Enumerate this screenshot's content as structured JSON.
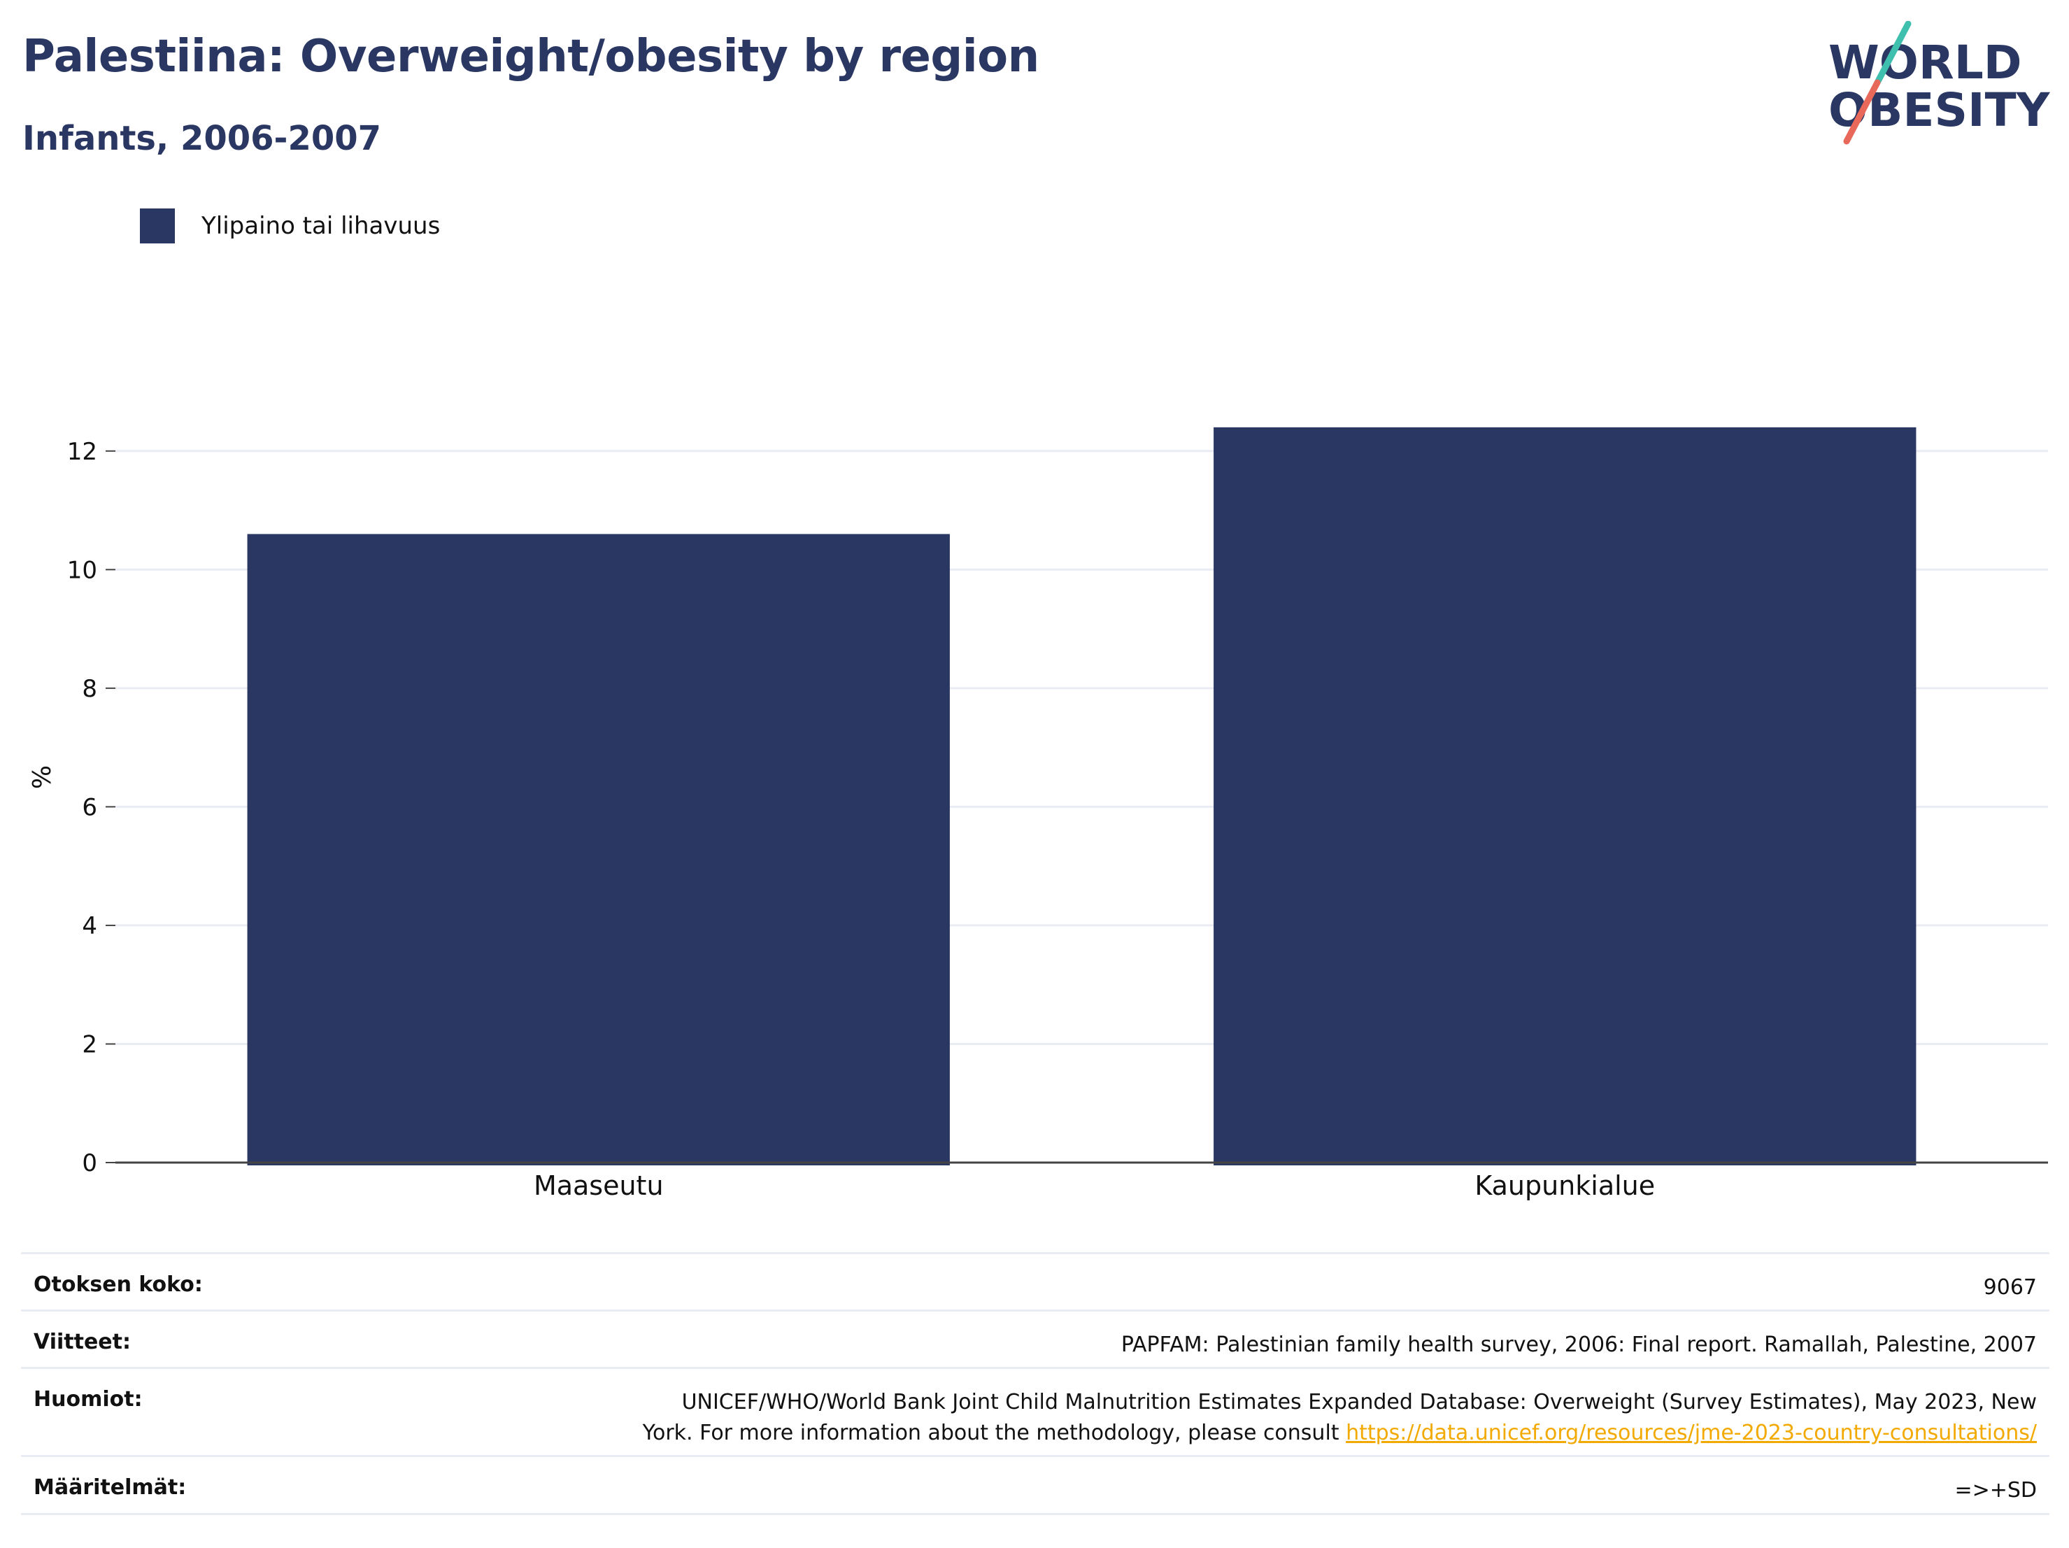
{
  "header": {
    "title": "Palestiina: Overweight/obesity by region",
    "subtitle": "Infants, 2006-2007"
  },
  "logo": {
    "line1": "WORLD",
    "line2": "OBESITY",
    "colors": {
      "text": "#2a3763",
      "slash_top": "#3fbfad",
      "slash_bottom": "#e8685a"
    }
  },
  "legend": {
    "label": "Ylipaino tai lihavuus",
    "color": "#2a3763"
  },
  "chart_data": {
    "type": "bar",
    "categories": [
      "Maaseutu",
      "Kaupunkialue"
    ],
    "series": [
      {
        "name": "Ylipaino tai lihavuus",
        "values": [
          10.6,
          12.4
        ],
        "color": "#2a3763"
      }
    ],
    "ylabel": "%",
    "xlabel": "",
    "ylim": [
      0,
      13
    ],
    "yticks": [
      0,
      2,
      4,
      6,
      8,
      10,
      12
    ],
    "grid": true,
    "legend_position": "top-left"
  },
  "meta": {
    "sample_size": {
      "label": "Otoksen koko:",
      "value": "9067"
    },
    "references": {
      "label": "Viitteet:",
      "value": "PAPFAM: Palestinian family health survey, 2006: Final report. Ramallah, Palestine, 2007"
    },
    "notes": {
      "label": "Huomiot:",
      "value_line1": "UNICEF/WHO/World Bank Joint Child Malnutrition Estimates Expanded Database: Overweight (Survey Estimates), May 2023, New",
      "value_line2": "York. For more information about the methodology, please consult",
      "link": "https://data.unicef.org/resources/jme-2023-country-consultations/"
    },
    "definitions": {
      "label": "Määritelmät:",
      "value": "=>+SD"
    }
  }
}
